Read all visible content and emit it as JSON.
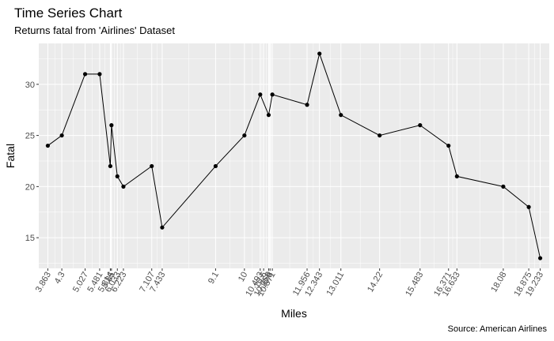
{
  "chart_data": {
    "type": "line",
    "title": "Time Series Chart",
    "subtitle": "Returns fatal from 'Airlines' Dataset",
    "caption": "Source: American Airlines",
    "xlabel": "Miles",
    "ylabel": "Fatal",
    "xlim": [
      3.581,
      19.515
    ],
    "ylim": [
      12.0,
      34.0
    ],
    "y_ticks": [
      15,
      20,
      25,
      30
    ],
    "x_breaks": [
      3.863,
      4.3,
      5.027,
      5.481,
      5.814,
      5.85,
      6.033,
      6.223,
      7.107,
      7.433,
      9.1,
      10,
      10.493,
      10.6,
      10.756,
      10.8,
      10.871,
      11.956,
      12.343,
      13.011,
      14.22,
      15.483,
      16.371,
      16.633,
      18.08,
      18.875,
      19.233
    ],
    "x_labels": [
      "3.863",
      "4.3",
      "5.027",
      "5.481",
      "5.814",
      "5.85",
      "6.033",
      "6.223",
      "7.107",
      "7.433",
      "9.1",
      "10",
      "10.493",
      "10.6",
      "10.756",
      "10.8",
      "10.871",
      "11.956",
      "12.343",
      "13.011",
      "14.22",
      "15.483",
      "16.371",
      "16.633",
      "18.08",
      "18.875",
      "19.233"
    ],
    "series": [
      {
        "x": [
          3.863,
          4.3,
          5.027,
          5.481,
          5.814,
          5.85,
          6.033,
          6.223,
          7.107,
          7.433,
          9.1,
          10,
          10.493,
          10.756,
          10.871,
          11.956,
          12.343,
          13.011,
          14.22,
          15.483,
          16.371,
          16.633,
          18.08,
          18.875,
          19.233
        ],
        "y": [
          24,
          25,
          31,
          31,
          22,
          26,
          21,
          20,
          22,
          16,
          22,
          25,
          29,
          27,
          29,
          28,
          33,
          27,
          25,
          26,
          24,
          21,
          20,
          18,
          13
        ]
      }
    ],
    "grid": true,
    "legend": "none",
    "colors": {
      "panel": "#ebebeb",
      "grid_major": "#ffffff",
      "line": "#000000",
      "point": "#000000",
      "tick_label": "#4d4d4d"
    }
  }
}
